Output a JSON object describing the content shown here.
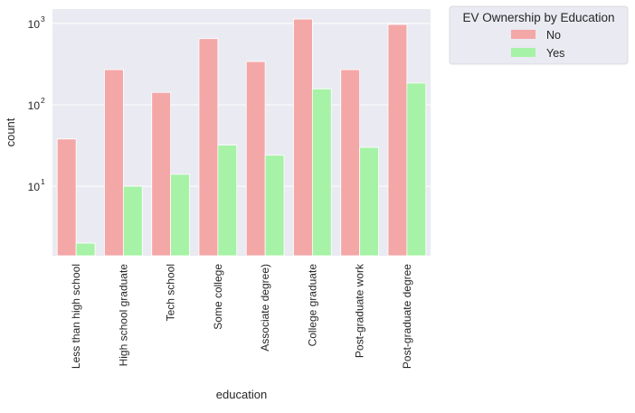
{
  "chart_data": {
    "type": "bar",
    "xlabel": "education",
    "ylabel": "count",
    "yscale": "log",
    "ylim": [
      1.4,
      1500
    ],
    "y_ticks": [
      {
        "value": 10,
        "base": "10",
        "exp": "1"
      },
      {
        "value": 100,
        "base": "10",
        "exp": "2"
      },
      {
        "value": 1000,
        "base": "10",
        "exp": "3"
      }
    ],
    "grid": true,
    "categories": [
      "Less than high school",
      "High school graduate",
      "Tech school",
      "Some college",
      "Associate degree)",
      "College graduate",
      "Post-graduate work",
      "Post-graduate degree"
    ],
    "series": [
      {
        "name": "No",
        "color": "#f4a7a7",
        "values": [
          38,
          270,
          142,
          650,
          340,
          1130,
          270,
          970
        ]
      },
      {
        "name": "Yes",
        "color": "#a6f2a6",
        "values": [
          2,
          10,
          14,
          32,
          24,
          157,
          30,
          185
        ]
      }
    ],
    "legend": {
      "title": "EV Ownership by Education",
      "placement": "outside-top-right"
    },
    "colors": {
      "plot_background": "#eaeaf2",
      "grid": "#ffffff"
    }
  }
}
